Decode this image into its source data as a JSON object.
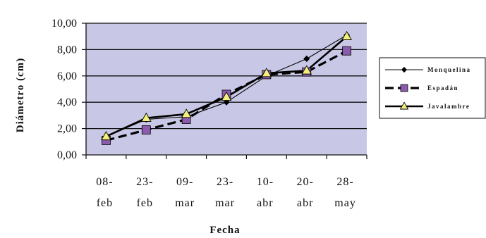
{
  "chart_data": {
    "type": "line",
    "xlabel": "Fecha",
    "ylabel": "Diámetro (cm)",
    "ylim": [
      0,
      10
    ],
    "ytick_labels": [
      "0,00",
      "2,00",
      "4,00",
      "6,00",
      "8,00",
      "10,00"
    ],
    "categories": [
      [
        "08-",
        "feb"
      ],
      [
        "23-",
        "feb"
      ],
      [
        "09-",
        "mar"
      ],
      [
        "23-",
        "mar"
      ],
      [
        "10-",
        "abr"
      ],
      [
        "20-",
        "abr"
      ],
      [
        "28-",
        "may"
      ]
    ],
    "grid": true,
    "legend_position": "right",
    "plot_background": "#c8c8e6",
    "series": [
      {
        "name": "Monquelina",
        "values": [
          1.4,
          2.7,
          2.9,
          4.0,
          6.0,
          7.3,
          9.1
        ],
        "color": "#000000",
        "line": "thin-solid",
        "marker": "diamond",
        "marker_color": "#000000"
      },
      {
        "name": "Espadán",
        "values": [
          1.1,
          1.9,
          2.7,
          4.6,
          6.1,
          6.3,
          7.9
        ],
        "color": "#000000",
        "line": "thick-dashed",
        "marker": "square",
        "marker_color": "#8a5cab"
      },
      {
        "name": "Javalambre",
        "values": [
          1.4,
          2.8,
          3.1,
          4.4,
          6.2,
          6.4,
          9.0
        ],
        "color": "#000000",
        "line": "thick-solid",
        "marker": "triangle",
        "marker_color": "#f2f07a"
      }
    ]
  }
}
